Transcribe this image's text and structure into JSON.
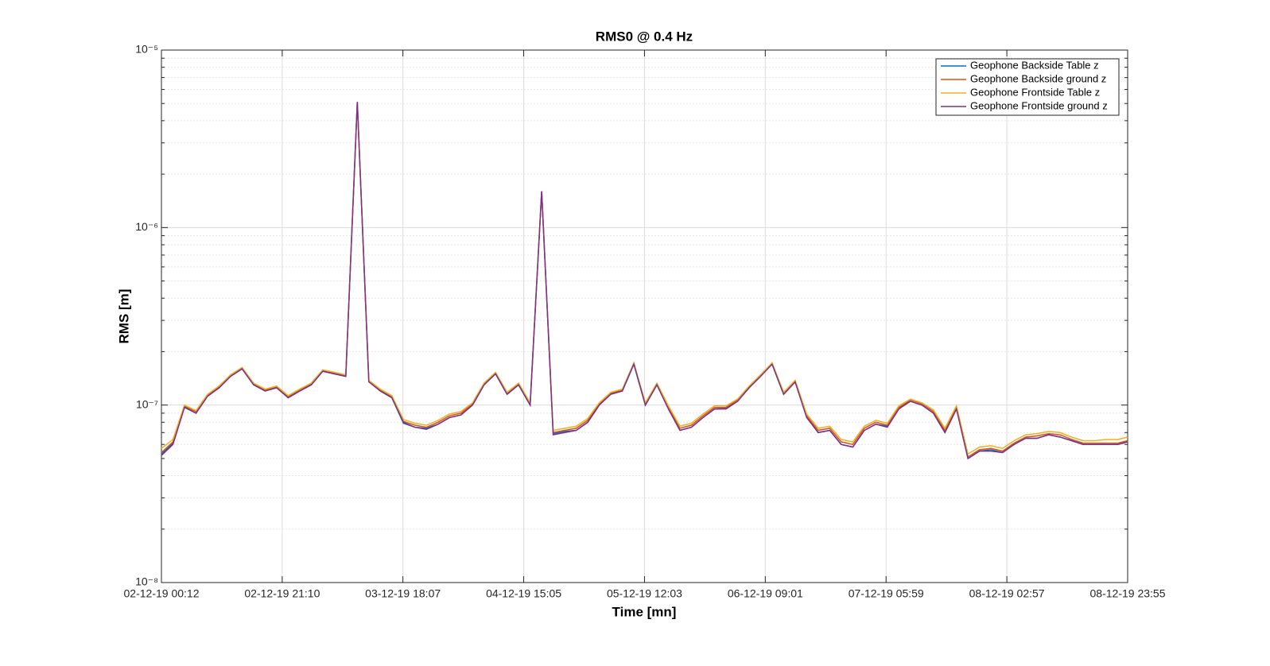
{
  "chart_data": {
    "type": "line",
    "title": "RMS0 @ 0.4 Hz",
    "xlabel": "Time [mn]",
    "ylabel": "RMS [m]",
    "x": [
      "02-12-19 00:12",
      "02-12-19 02:12",
      "02-12-19 04:12",
      "02-12-19 06:12",
      "02-12-19 08:12",
      "02-12-19 10:12",
      "02-12-19 12:12",
      "02-12-19 14:12",
      "02-12-19 16:12",
      "02-12-19 18:12",
      "02-12-19 20:12",
      "02-12-19 22:12",
      "03-12-19 00:12",
      "03-12-19 02:12",
      "03-12-19 04:12",
      "03-12-19 06:12",
      "03-12-19 08:12",
      "03-12-19 10:12",
      "03-12-19 12:12",
      "03-12-19 14:12",
      "03-12-19 16:12",
      "03-12-19 18:12",
      "03-12-19 20:12",
      "03-12-19 22:12",
      "04-12-19 00:12",
      "04-12-19 02:12",
      "04-12-19 04:12",
      "04-12-19 06:12",
      "04-12-19 08:12",
      "04-12-19 10:12",
      "04-12-19 12:12",
      "04-12-19 14:12",
      "04-12-19 16:12",
      "04-12-19 18:12",
      "04-12-19 20:12",
      "04-12-19 22:12",
      "05-12-19 00:12",
      "05-12-19 02:12",
      "05-12-19 04:12",
      "05-12-19 06:12",
      "05-12-19 08:12",
      "05-12-19 10:12",
      "05-12-19 12:12",
      "05-12-19 14:12",
      "05-12-19 16:12",
      "05-12-19 18:12",
      "05-12-19 20:12",
      "05-12-19 22:12",
      "06-12-19 00:12",
      "06-12-19 02:12",
      "06-12-19 04:12",
      "06-12-19 06:12",
      "06-12-19 08:12",
      "06-12-19 10:12",
      "06-12-19 12:12",
      "06-12-19 14:12",
      "06-12-19 16:12",
      "06-12-19 18:12",
      "06-12-19 20:12",
      "06-12-19 22:12",
      "07-12-19 00:12",
      "07-12-19 02:12",
      "07-12-19 04:12",
      "07-12-19 06:12",
      "07-12-19 08:12",
      "07-12-19 10:12",
      "07-12-19 12:12",
      "07-12-19 14:12",
      "07-12-19 16:12",
      "07-12-19 18:12",
      "07-12-19 20:12",
      "07-12-19 22:12",
      "08-12-19 00:12",
      "08-12-19 02:12",
      "08-12-19 04:12",
      "08-12-19 06:12",
      "08-12-19 08:12",
      "08-12-19 10:12",
      "08-12-19 12:12",
      "08-12-19 14:12",
      "08-12-19 16:12",
      "08-12-19 18:12",
      "08-12-19 20:12",
      "08-12-19 22:12",
      "08-12-19 23:55"
    ],
    "series": [
      {
        "name": "Geophone Backside Table z",
        "color": "#0072BD",
        "values": [
          5.3e-08,
          6.1e-08,
          9.8e-08,
          9e-08,
          1.13e-07,
          1.25e-07,
          1.46e-07,
          1.6e-07,
          1.3e-07,
          1.2e-07,
          1.26e-07,
          1.1e-07,
          1.2e-07,
          1.3e-07,
          1.55e-07,
          1.5e-07,
          1.45e-07,
          5.1e-06,
          1.36e-07,
          1.2e-07,
          1.1e-07,
          7.9e-08,
          7.5e-08,
          7.4e-08,
          7.8e-08,
          8.5e-08,
          8.8e-08,
          1e-07,
          1.3e-07,
          1.5e-07,
          1.15e-07,
          1.3e-07,
          1e-07,
          1.6e-06,
          6.9e-08,
          7.1e-08,
          7.2e-08,
          8e-08,
          1e-07,
          1.16e-07,
          1.2e-07,
          1.7e-07,
          1e-07,
          1.3e-07,
          9.6e-08,
          7.2e-08,
          7.5e-08,
          8.5e-08,
          9.5e-08,
          9.6e-08,
          1.05e-07,
          1.25e-07,
          1.46e-07,
          1.7e-07,
          1.15e-07,
          1.35e-07,
          8.6e-08,
          7e-08,
          7.2e-08,
          6e-08,
          5.8e-08,
          7.2e-08,
          7.8e-08,
          7.6e-08,
          9.6e-08,
          1.05e-07,
          1e-07,
          9e-08,
          7e-08,
          9.6e-08,
          5e-08,
          5.5e-08,
          5.6e-08,
          5.4e-08,
          6e-08,
          6.5e-08,
          6.5e-08,
          6.8e-08,
          6.6e-08,
          6.3e-08,
          6e-08,
          6e-08,
          6e-08,
          6e-08,
          6.2e-08
        ]
      },
      {
        "name": "Geophone Backside ground z",
        "color": "#D95319",
        "values": [
          5.4e-08,
          6.2e-08,
          9.9e-08,
          9.2e-08,
          1.14e-07,
          1.27e-07,
          1.48e-07,
          1.62e-07,
          1.32e-07,
          1.22e-07,
          1.27e-07,
          1.12e-07,
          1.22e-07,
          1.32e-07,
          1.57e-07,
          1.52e-07,
          1.47e-07,
          5.1e-06,
          1.37e-07,
          1.22e-07,
          1.12e-07,
          8.1e-08,
          7.7e-08,
          7.5e-08,
          8e-08,
          8.7e-08,
          9e-08,
          1.02e-07,
          1.32e-07,
          1.52e-07,
          1.17e-07,
          1.32e-07,
          1.02e-07,
          1.6e-06,
          7e-08,
          7.2e-08,
          7.4e-08,
          8.2e-08,
          1.02e-07,
          1.17e-07,
          1.22e-07,
          1.72e-07,
          1.02e-07,
          1.32e-07,
          9.7e-08,
          7.4e-08,
          7.7e-08,
          8.7e-08,
          9.7e-08,
          9.7e-08,
          1.07e-07,
          1.27e-07,
          1.48e-07,
          1.72e-07,
          1.17e-07,
          1.37e-07,
          8.7e-08,
          7.2e-08,
          7.4e-08,
          6.2e-08,
          6e-08,
          7.4e-08,
          8e-08,
          7.7e-08,
          9.7e-08,
          1.07e-07,
          1.02e-07,
          9.2e-08,
          7.2e-08,
          9.7e-08,
          5.1e-08,
          5.6e-08,
          5.7e-08,
          5.5e-08,
          6.1e-08,
          6.6e-08,
          6.7e-08,
          6.9e-08,
          6.8e-08,
          6.4e-08,
          6.1e-08,
          6.1e-08,
          6.1e-08,
          6.1e-08,
          6.3e-08
        ]
      },
      {
        "name": "Geophone Frontside Table z",
        "color": "#EDB120",
        "values": [
          5.7e-08,
          6.4e-08,
          1e-07,
          9.3e-08,
          1.15e-07,
          1.28e-07,
          1.48e-07,
          1.63e-07,
          1.33e-07,
          1.23e-07,
          1.28e-07,
          1.13e-07,
          1.23e-07,
          1.33e-07,
          1.58e-07,
          1.53e-07,
          1.48e-07,
          5.1e-06,
          1.38e-07,
          1.23e-07,
          1.13e-07,
          8.3e-08,
          7.9e-08,
          7.7e-08,
          8.2e-08,
          8.9e-08,
          9.2e-08,
          1.03e-07,
          1.33e-07,
          1.53e-07,
          1.18e-07,
          1.33e-07,
          1.03e-07,
          1.6e-06,
          7.2e-08,
          7.4e-08,
          7.6e-08,
          8.4e-08,
          1.03e-07,
          1.18e-07,
          1.23e-07,
          1.73e-07,
          1.03e-07,
          1.33e-07,
          9.9e-08,
          7.6e-08,
          7.9e-08,
          8.9e-08,
          9.9e-08,
          9.9e-08,
          1.08e-07,
          1.28e-07,
          1.48e-07,
          1.73e-07,
          1.18e-07,
          1.38e-07,
          8.9e-08,
          7.4e-08,
          7.6e-08,
          6.4e-08,
          6.2e-08,
          7.6e-08,
          8.2e-08,
          7.9e-08,
          9.9e-08,
          1.08e-07,
          1.03e-07,
          9.4e-08,
          7.4e-08,
          9.9e-08,
          5.3e-08,
          5.8e-08,
          5.9e-08,
          5.7e-08,
          6.3e-08,
          6.8e-08,
          6.9e-08,
          7.1e-08,
          7e-08,
          6.6e-08,
          6.3e-08,
          6.3e-08,
          6.4e-08,
          6.4e-08,
          6.6e-08
        ]
      },
      {
        "name": "Geophone Frontside ground z",
        "color": "#7E2F8E",
        "values": [
          5.2e-08,
          6e-08,
          9.7e-08,
          9e-08,
          1.12e-07,
          1.25e-07,
          1.45e-07,
          1.6e-07,
          1.3e-07,
          1.2e-07,
          1.25e-07,
          1.1e-07,
          1.2e-07,
          1.3e-07,
          1.55e-07,
          1.5e-07,
          1.45e-07,
          5.1e-06,
          1.35e-07,
          1.2e-07,
          1.1e-07,
          8e-08,
          7.5e-08,
          7.3e-08,
          7.8e-08,
          8.5e-08,
          8.8e-08,
          1e-07,
          1.3e-07,
          1.5e-07,
          1.15e-07,
          1.3e-07,
          1e-07,
          1.6e-06,
          6.8e-08,
          7e-08,
          7.2e-08,
          8e-08,
          1e-07,
          1.15e-07,
          1.2e-07,
          1.7e-07,
          1e-07,
          1.3e-07,
          9.5e-08,
          7.2e-08,
          7.5e-08,
          8.5e-08,
          9.5e-08,
          9.5e-08,
          1.05e-07,
          1.25e-07,
          1.45e-07,
          1.7e-07,
          1.15e-07,
          1.35e-07,
          8.5e-08,
          7e-08,
          7.2e-08,
          6e-08,
          5.8e-08,
          7.2e-08,
          7.8e-08,
          7.5e-08,
          9.5e-08,
          1.05e-07,
          1e-07,
          9e-08,
          7e-08,
          9.5e-08,
          5e-08,
          5.5e-08,
          5.5e-08,
          5.4e-08,
          6e-08,
          6.5e-08,
          6.5e-08,
          6.8e-08,
          6.6e-08,
          6.3e-08,
          6e-08,
          6e-08,
          6e-08,
          6e-08,
          6.2e-08
        ]
      }
    ],
    "xlim": [
      "02-12-19 00:12",
      "08-12-19 23:55"
    ],
    "xticks": [
      "02-12-19 00:12",
      "02-12-19 21:10",
      "03-12-19 18:07",
      "04-12-19 15:05",
      "05-12-19 12:03",
      "06-12-19 09:01",
      "07-12-19 05:59",
      "08-12-19 02:57",
      "08-12-19 23:55"
    ],
    "ylim": [
      1e-08,
      1e-05
    ],
    "yticks": [
      {
        "value": 1e-08,
        "label": "10⁻⁸"
      },
      {
        "value": 1e-07,
        "label": "10⁻⁷"
      },
      {
        "value": 1e-06,
        "label": "10⁻⁶"
      },
      {
        "value": 1e-05,
        "label": "10⁻⁵"
      }
    ],
    "yscale": "log",
    "grid": true,
    "minor_grid": true,
    "legend": "upper right"
  }
}
